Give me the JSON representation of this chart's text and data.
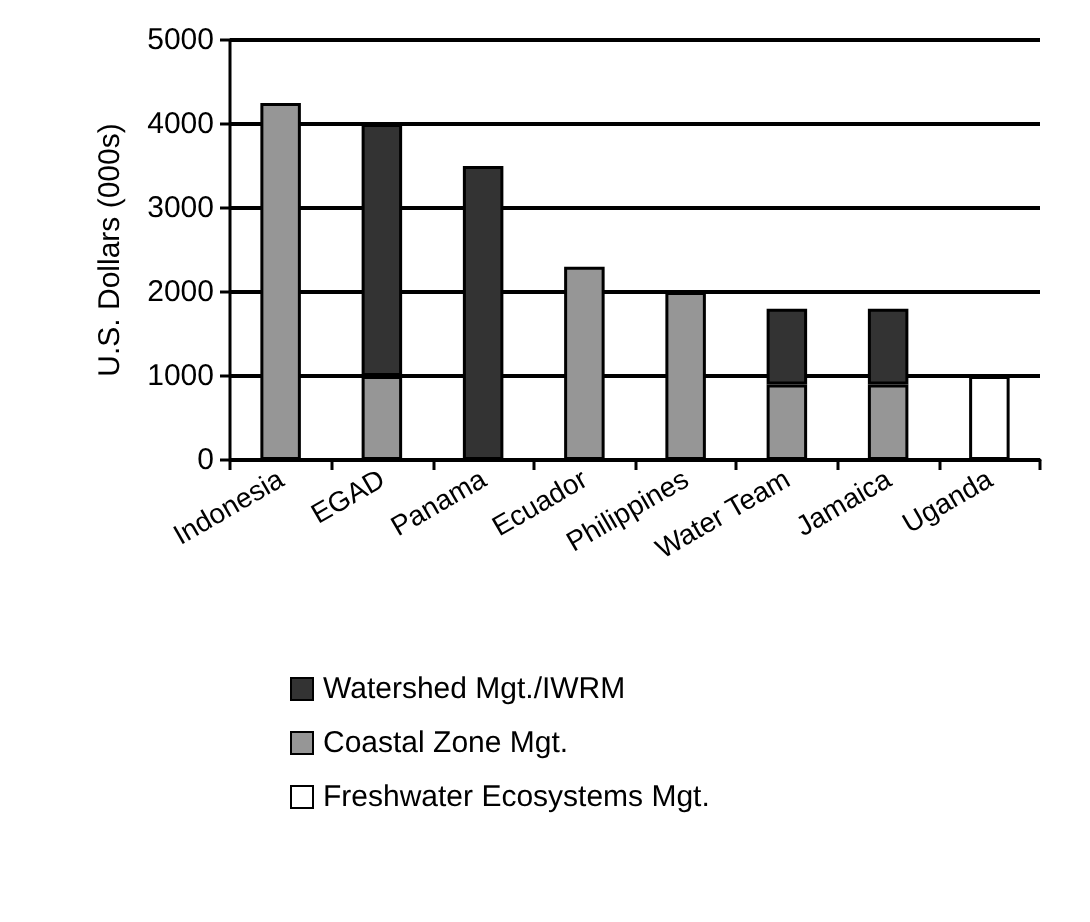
{
  "chart_data": {
    "type": "bar",
    "ylabel": "U.S. Dollars (000s)",
    "categories": [
      "Indonesia",
      "EGAD",
      "Panama",
      "Ecuador",
      "Philippines",
      "Water Team",
      "Jamaica",
      "Uganda"
    ],
    "series": [
      {
        "name": "Freshwater Ecosystems Mgt.",
        "color": "#ffffff",
        "values": [
          null,
          null,
          null,
          null,
          null,
          null,
          null,
          1000
        ]
      },
      {
        "name": "Coastal Zone Mgt.",
        "color": "#969696",
        "values": [
          4250,
          1000,
          null,
          2300,
          2000,
          900,
          900,
          null
        ]
      },
      {
        "name": "Watershed Mgt./IWRM",
        "color": "#333333",
        "values": [
          null,
          3000,
          3500,
          null,
          null,
          900,
          900,
          null
        ]
      }
    ],
    "stacked": true,
    "ylim": [
      0,
      5000
    ],
    "yticks": [
      0,
      1000,
      2000,
      3000,
      4000,
      5000
    ],
    "grid": "y",
    "legend": "bottom"
  }
}
